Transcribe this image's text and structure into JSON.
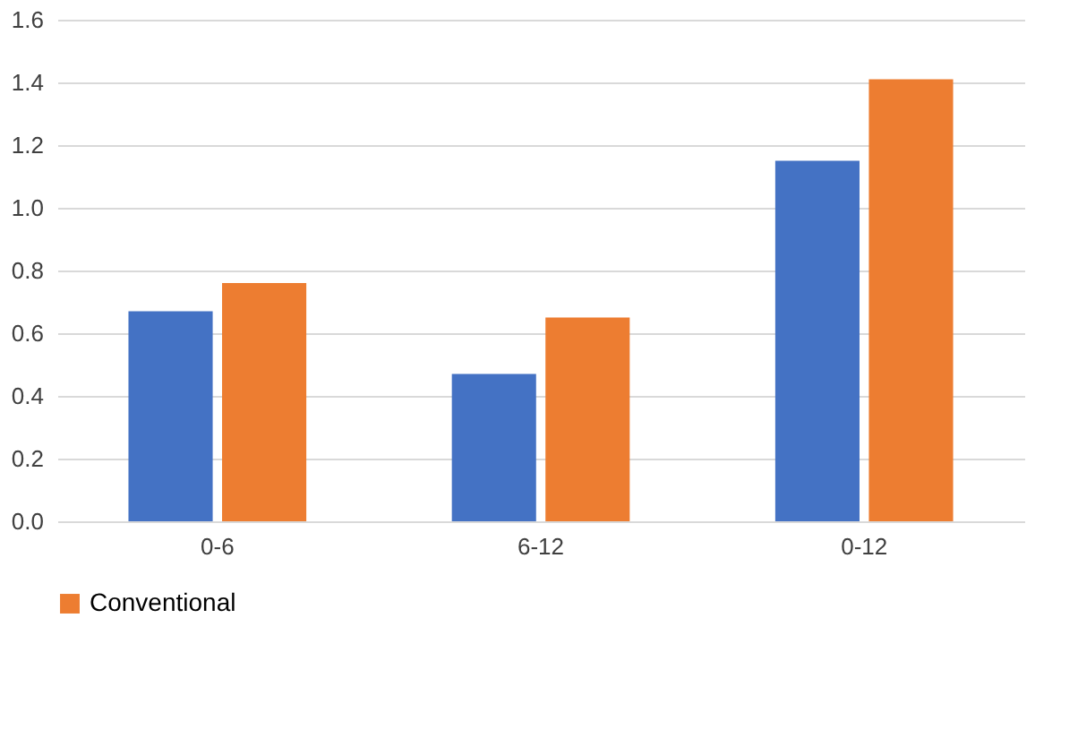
{
  "chart_data": {
    "type": "bar",
    "categories": [
      "0-6",
      "6-12",
      "0-12"
    ],
    "series": [
      {
        "color": "#4472c4",
        "values": [
          0.67,
          0.47,
          1.15
        ]
      },
      {
        "name": "Conventional",
        "color": "#ed7d31",
        "values": [
          0.76,
          0.65,
          1.41
        ]
      }
    ],
    "ylim": [
      0,
      1.6
    ],
    "yticks": [
      {
        "value": 0,
        "label": "0.0"
      },
      0.2,
      0.4,
      0.6,
      0.8,
      {
        "value": 1,
        "label": "1.0"
      },
      1.2,
      1.4,
      1.6
    ],
    "grid": "y",
    "legend": "bottom"
  }
}
